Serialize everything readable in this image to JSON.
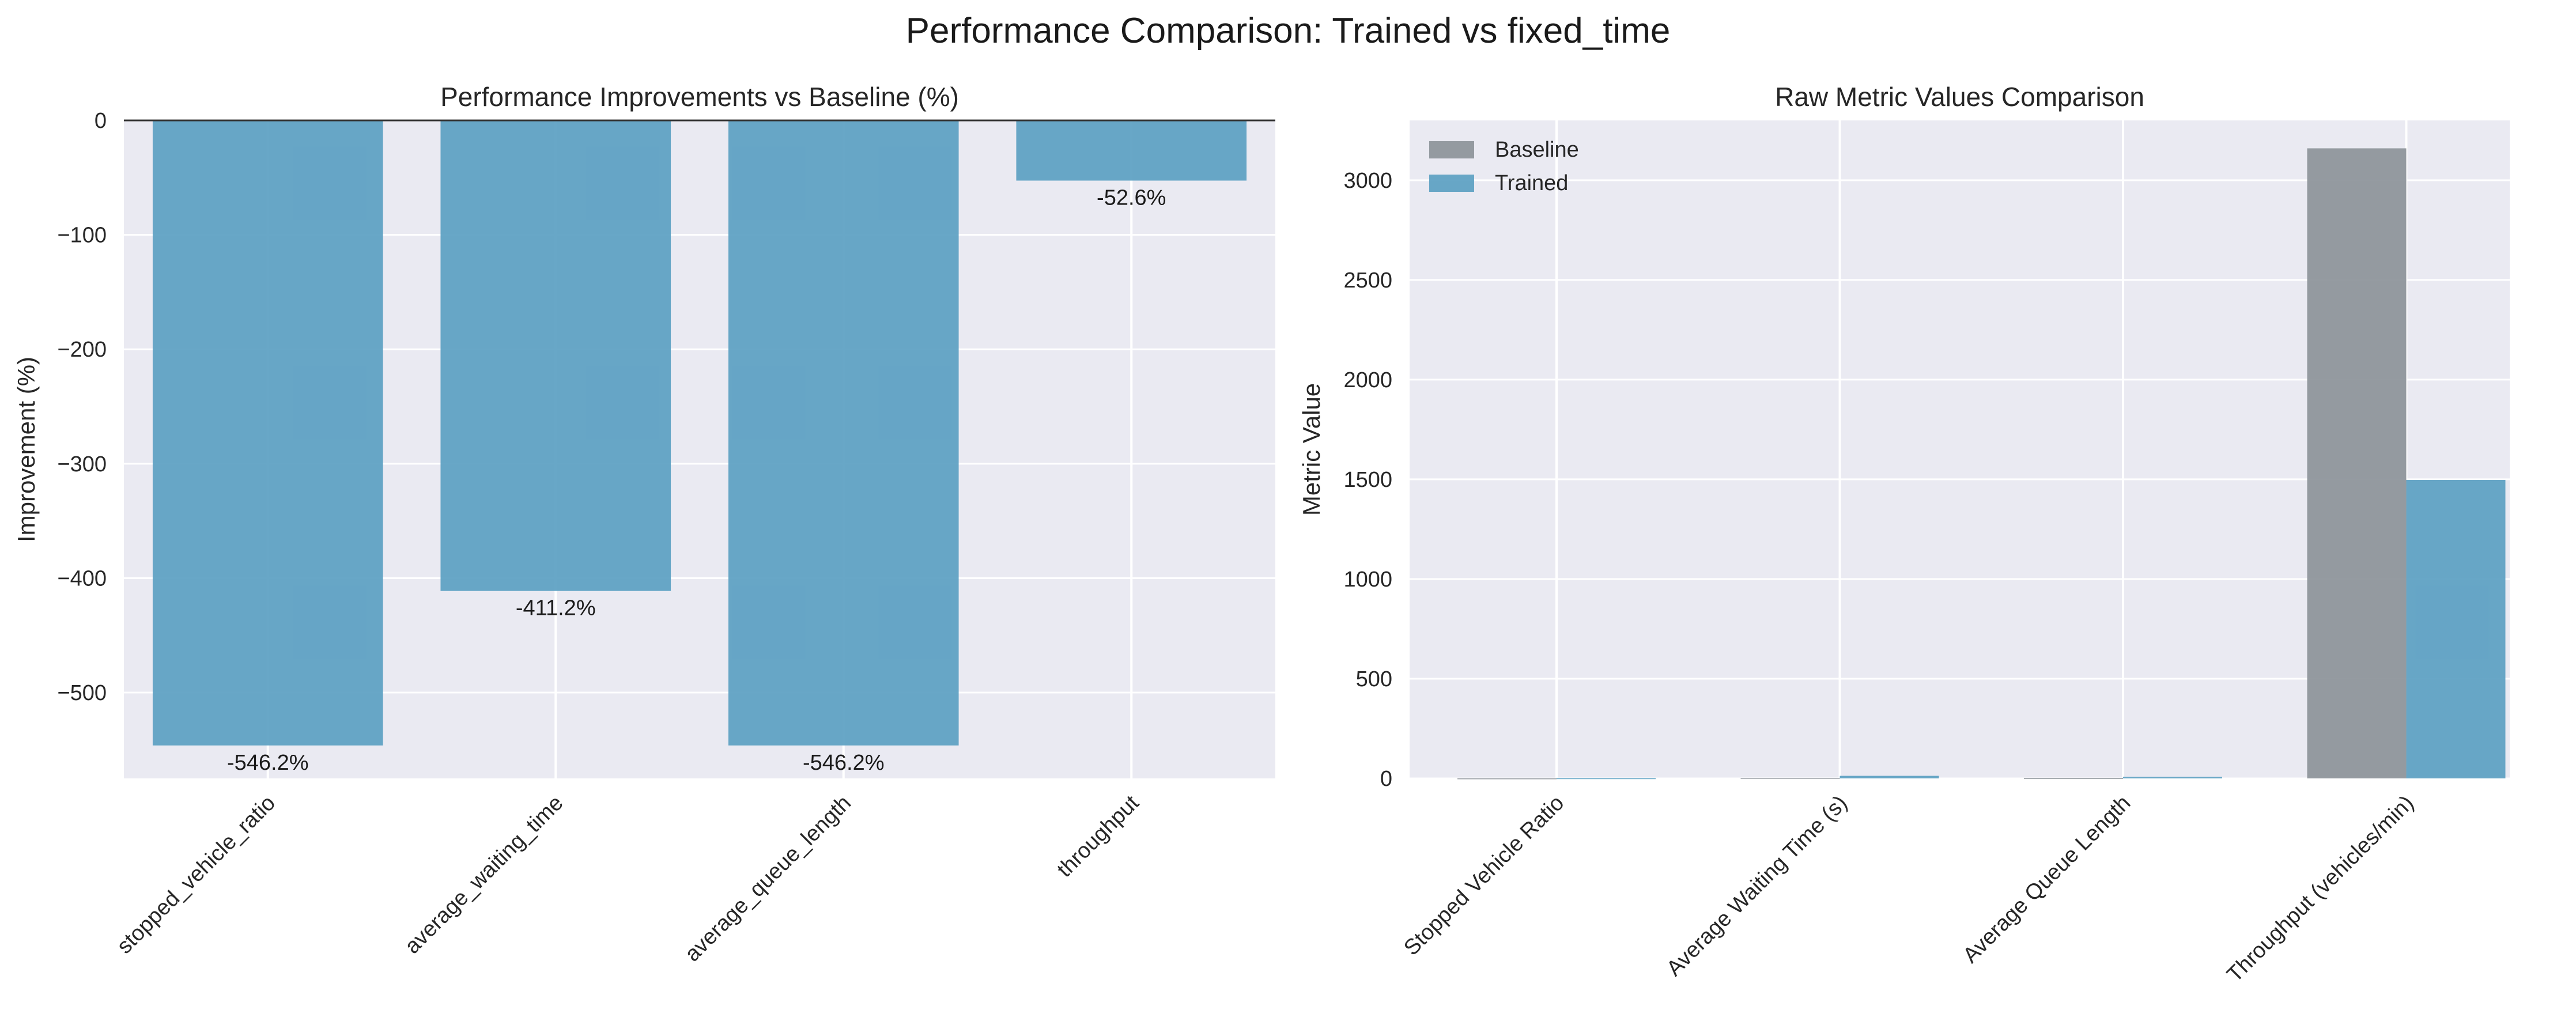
{
  "figure": {
    "suptitle": "Performance Comparison: Trained vs fixed_time"
  },
  "chart_data": [
    {
      "type": "bar",
      "title": "Performance Improvements vs Baseline (%)",
      "xlabel": "",
      "ylabel": "Improvement (%)",
      "categories": [
        "stopped_vehicle_ratio",
        "average_waiting_time",
        "average_queue_length",
        "throughput"
      ],
      "values": [
        -546.2,
        -411.2,
        -546.2,
        -52.6
      ],
      "data_labels": [
        "-546.2%",
        "-411.2%",
        "-546.2%",
        "-52.6%"
      ],
      "ylim": [
        -575,
        0
      ],
      "yticks": [
        0,
        -100,
        -200,
        -300,
        -400,
        -500
      ],
      "ytick_labels": [
        "0",
        "−100",
        "−200",
        "−300",
        "−400",
        "−500"
      ],
      "bar_color": "#5b9fc2",
      "grid": true,
      "zero_line": true
    },
    {
      "type": "bar",
      "title": "Raw Metric Values Comparison",
      "xlabel": "",
      "ylabel": "Metric Value",
      "categories": [
        "Stopped Vehicle Ratio",
        "Average Waiting Time (s)",
        "Average Queue Length",
        "Throughput (vehicles/min)"
      ],
      "series": [
        {
          "name": "Baseline",
          "values": [
            0.1,
            2.5,
            1.2,
            3160
          ],
          "color": "#8c9299"
        },
        {
          "name": "Trained",
          "values": [
            0.8,
            12.8,
            7.8,
            1497
          ],
          "color": "#5b9fc2"
        }
      ],
      "ylim": [
        0,
        3300
      ],
      "yticks": [
        0,
        500,
        1000,
        1500,
        2000,
        2500,
        3000
      ],
      "ytick_labels": [
        "0",
        "500",
        "1000",
        "1500",
        "2000",
        "2500",
        "3000"
      ],
      "legend_position": "top-left",
      "grid": true
    }
  ]
}
